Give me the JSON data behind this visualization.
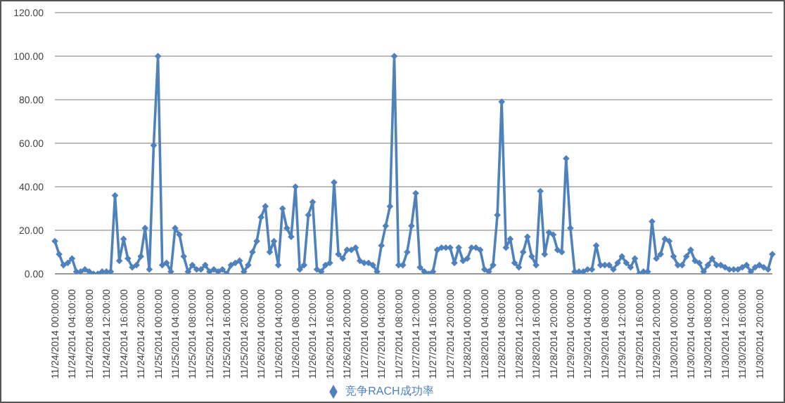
{
  "chart_data": {
    "type": "line",
    "categories": [
      "11/24/2014 00:00:00",
      null,
      null,
      null,
      "11/24/2014 04:00:00",
      null,
      null,
      null,
      "11/24/2014 08:00:00",
      null,
      null,
      null,
      "11/24/2014 12:00:00",
      null,
      null,
      null,
      "11/24/2014 16:00:00",
      null,
      null,
      null,
      "11/24/2014 20:00:00",
      null,
      null,
      null,
      "11/25/2014 00:00:00",
      null,
      null,
      null,
      "11/25/2014 04:00:00",
      null,
      null,
      null,
      "11/25/2014 08:00:00",
      null,
      null,
      null,
      "11/25/2014 12:00:00",
      null,
      null,
      null,
      "11/25/2014 16:00:00",
      null,
      null,
      null,
      "11/25/2014 20:00:00",
      null,
      null,
      null,
      "11/26/2014 00:00:00",
      null,
      null,
      null,
      "11/26/2014 04:00:00",
      null,
      null,
      null,
      "11/26/2014 08:00:00",
      null,
      null,
      null,
      "11/26/2014 12:00:00",
      null,
      null,
      null,
      "11/26/2014 16:00:00",
      null,
      null,
      null,
      "11/26/2014 20:00:00",
      null,
      null,
      null,
      "11/27/2014 00:00:00",
      null,
      null,
      null,
      "11/27/2014 04:00:00",
      null,
      null,
      null,
      "11/27/2014 08:00:00",
      null,
      null,
      null,
      "11/27/2014 12:00:00",
      null,
      null,
      null,
      "11/27/2014 16:00:00",
      null,
      null,
      null,
      "11/27/2014 20:00:00",
      null,
      null,
      null,
      "11/28/2014 00:00:00",
      null,
      null,
      null,
      "11/28/2014 04:00:00",
      null,
      null,
      null,
      "11/28/2014 08:00:00",
      null,
      null,
      null,
      "11/28/2014 12:00:00",
      null,
      null,
      null,
      "11/28/2014 16:00:00",
      null,
      null,
      null,
      "11/28/2014 20:00:00",
      null,
      null,
      null,
      "11/29/2014 00:00:00",
      null,
      null,
      null,
      "11/29/2014 04:00:00",
      null,
      null,
      null,
      "11/29/2014 08:00:00",
      null,
      null,
      null,
      "11/29/2014 12:00:00",
      null,
      null,
      null,
      "11/29/2014 16:00:00",
      null,
      null,
      null,
      "11/29/2014 20:00:00",
      null,
      null,
      null,
      "11/30/2014 00:00:00",
      null,
      null,
      null,
      "11/30/2014 04:00:00",
      null,
      null,
      null,
      "11/30/2014 08:00:00",
      null,
      null,
      null,
      "11/30/2014 12:00:00",
      null,
      null,
      null,
      "11/30/2014 16:00:00",
      null,
      null,
      null,
      "11/30/2014 20:00:00",
      null,
      null,
      null
    ],
    "series": [
      {
        "name": "竞争RACH成功率",
        "color": "#4f81bd",
        "values": [
          15,
          9,
          4,
          5,
          7,
          1,
          1,
          2,
          1,
          0,
          0,
          1,
          1,
          1,
          36,
          6,
          16,
          7,
          3,
          4,
          8,
          21,
          2,
          59,
          100,
          4,
          5,
          1,
          21,
          18,
          8,
          1,
          4,
          2,
          2,
          4,
          1,
          2,
          1,
          2,
          0,
          4,
          5,
          6,
          1,
          4,
          10,
          15,
          26,
          31,
          10,
          15,
          4,
          30,
          21,
          17,
          40,
          2,
          4,
          27,
          33,
          2,
          1,
          4,
          5,
          42,
          9,
          7,
          11,
          11,
          12,
          6,
          5,
          5,
          4,
          1,
          13,
          22,
          31,
          100,
          4,
          4,
          10,
          22,
          37,
          3,
          1,
          0,
          1,
          11,
          12,
          12,
          12,
          5,
          12,
          6,
          7,
          12,
          12,
          11,
          2,
          1,
          4,
          27,
          79,
          12,
          16,
          5,
          3,
          10,
          17,
          8,
          4,
          38,
          9,
          19,
          18,
          11,
          10,
          53,
          21,
          1,
          1,
          1,
          2,
          2,
          13,
          4,
          4,
          4,
          2,
          5,
          8,
          5,
          3,
          7,
          0,
          1,
          1,
          24,
          7,
          9,
          16,
          15,
          8,
          4,
          4,
          8,
          11,
          6,
          5,
          1,
          4,
          7,
          4,
          4,
          3,
          2,
          2,
          2,
          3,
          4,
          1,
          3,
          4,
          3,
          2,
          9
        ]
      }
    ],
    "ylim": [
      0,
      120
    ],
    "yticks": [
      {
        "value": 0,
        "label": "0.00"
      },
      {
        "value": 20,
        "label": "20.00"
      },
      {
        "value": 40,
        "label": "40.00"
      },
      {
        "value": 60,
        "label": "60.00"
      },
      {
        "value": 80,
        "label": "80.00"
      },
      {
        "value": 100,
        "label": "100.00"
      },
      {
        "value": 120,
        "label": "120.00"
      }
    ],
    "grid": "y",
    "legend": "bottom",
    "marker": "diamond",
    "line_style": "solid"
  }
}
